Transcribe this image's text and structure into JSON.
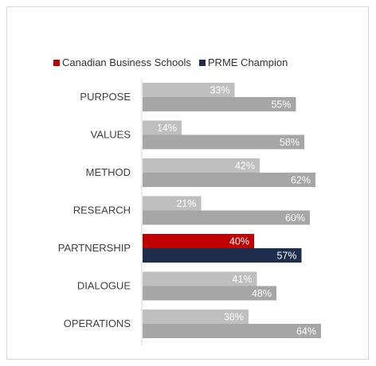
{
  "chart_data": {
    "type": "bar",
    "orientation": "horizontal",
    "categories": [
      "PURPOSE",
      "VALUES",
      "METHOD",
      "RESEARCH",
      "PARTNERSHIP",
      "DIALOGUE",
      "OPERATIONS"
    ],
    "series": [
      {
        "name": "Canadian Business Schools",
        "values": [
          33,
          14,
          42,
          21,
          40,
          41,
          38
        ],
        "labels": [
          "33%",
          "14%",
          "42%",
          "21%",
          "40%",
          "41%",
          "38%"
        ]
      },
      {
        "name": "PRME Champion",
        "values": [
          55,
          58,
          62,
          60,
          57,
          48,
          64
        ],
        "labels": [
          "55%",
          "58%",
          "62%",
          "60%",
          "57%",
          "48%",
          "64%"
        ]
      }
    ],
    "highlight_category": "PARTNERSHIP",
    "xlim": [
      0,
      100
    ],
    "grid": false,
    "legend_position": "top-left",
    "colors": {
      "series1_highlight": "#c00000",
      "series2_highlight": "#1f2d4d",
      "series1_default": "#bfbfbf",
      "series2_default": "#a6a6a6",
      "label_text": "#ffffff",
      "axis_line": "#d9d9d9",
      "category_text": "#404040"
    }
  }
}
